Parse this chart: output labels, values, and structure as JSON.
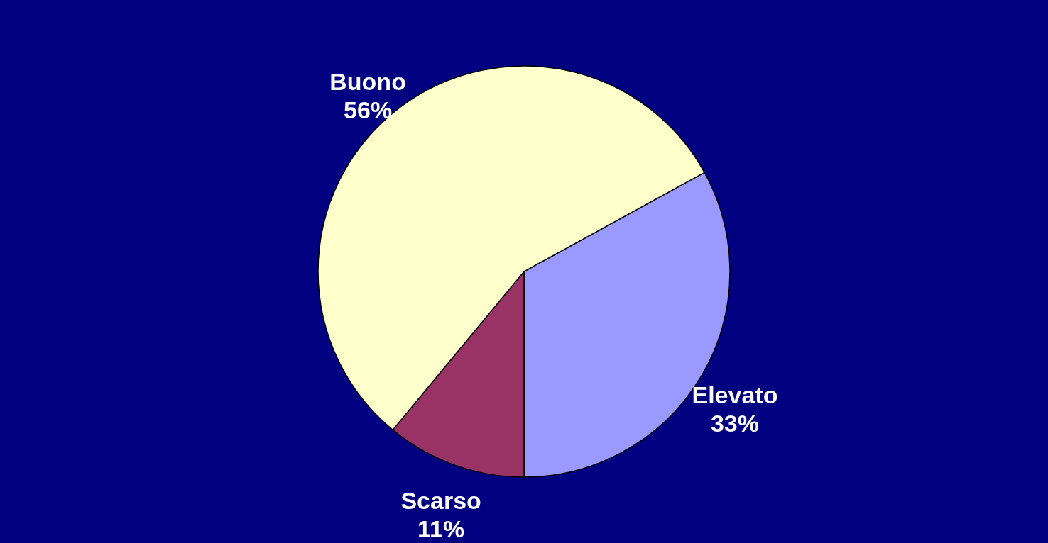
{
  "chart_data": {
    "type": "pie",
    "categories": [
      "Elevato",
      "Scarso",
      "Buono"
    ],
    "values": [
      33,
      11,
      56
    ],
    "value_labels": [
      "33%",
      "11%",
      "56%"
    ],
    "colors": [
      "#9999ff",
      "#993366",
      "#ffffcc"
    ]
  }
}
